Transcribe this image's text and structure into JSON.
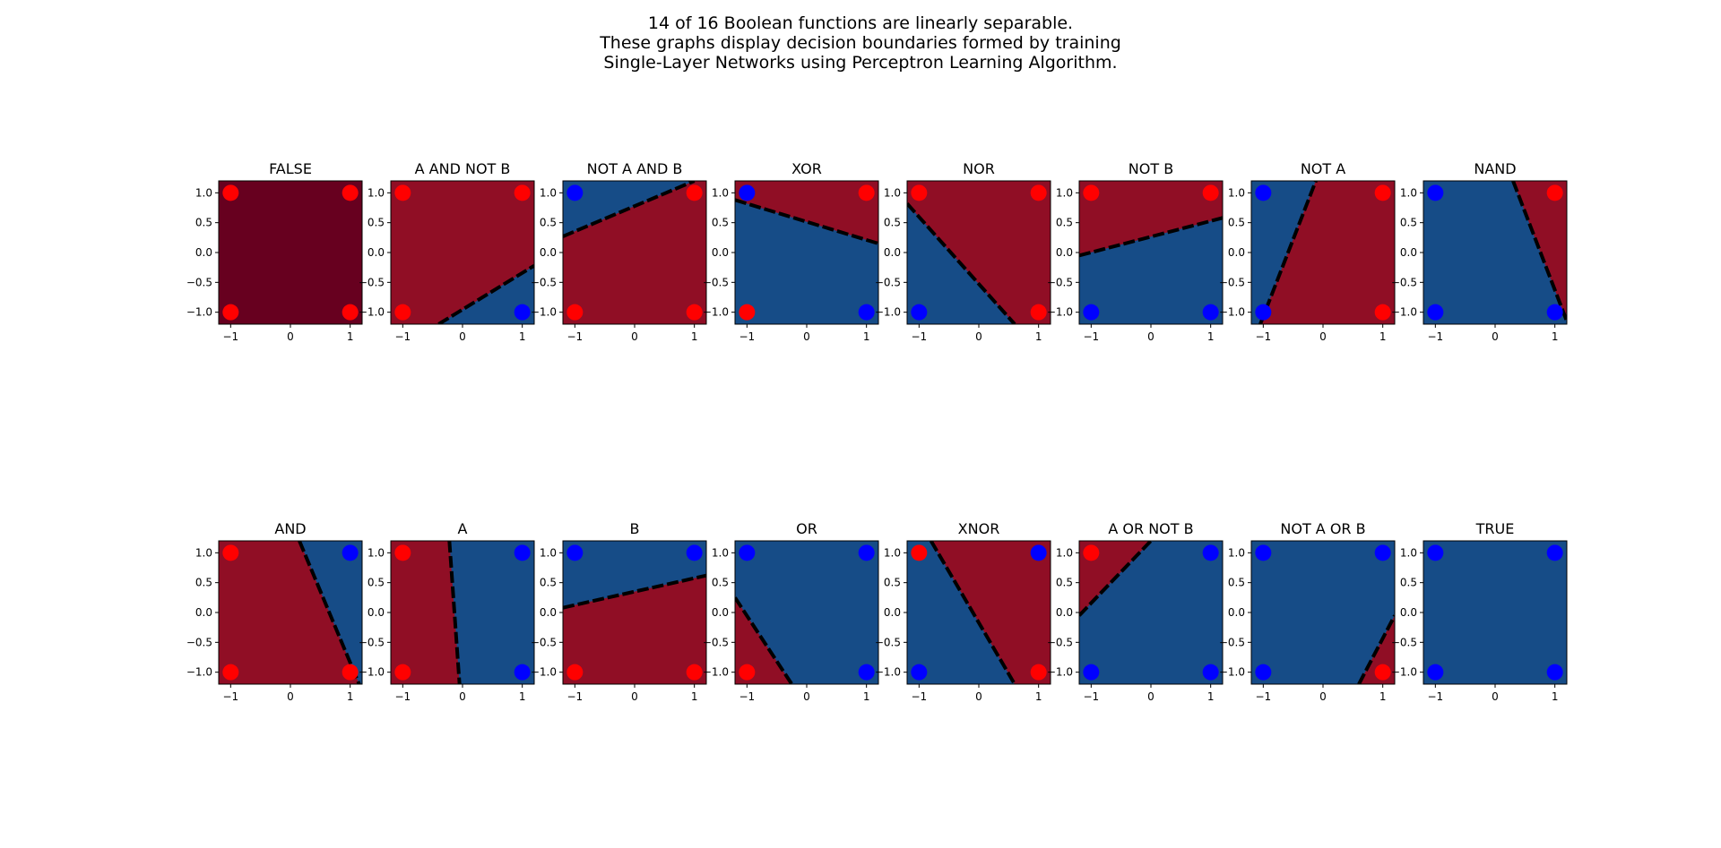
{
  "title_lines": [
    "14 of 16 Boolean functions are linearly separable.",
    "These graphs display decision boundaries formed by training",
    "Single-Layer Networks using Perceptron Learning Algorithm."
  ],
  "colors": {
    "positive_region": "#164c87",
    "negative_region": "#900e25",
    "false_region": "#67001f",
    "positive_point": "#0000ff",
    "negative_point": "#ff0000",
    "boundary": "#000000"
  },
  "chart_data": [
    {
      "type": "scatter",
      "title": "FALSE",
      "xlim": [
        -1.2,
        1.2
      ],
      "ylim": [
        -1.2,
        1.2
      ],
      "xticks": [
        "−1",
        "0",
        "1"
      ],
      "yticks": [
        "1.0",
        "0.5",
        "0.0",
        "−0.5",
        "−1.0"
      ],
      "x": [
        -1,
        1,
        -1,
        1
      ],
      "y": [
        -1,
        -1,
        1,
        1
      ],
      "labels": [
        0,
        0,
        0,
        0
      ],
      "fill": "false",
      "boundary": null
    },
    {
      "type": "scatter",
      "title": "A AND NOT B",
      "xlim": [
        -1.2,
        1.2
      ],
      "ylim": [
        -1.2,
        1.2
      ],
      "xticks": [
        "−1",
        "0",
        "1"
      ],
      "yticks": [
        "1.0",
        "0.5",
        "0.0",
        "−0.5",
        "−1.0"
      ],
      "x": [
        -1,
        1,
        -1,
        1
      ],
      "y": [
        -1,
        -1,
        1,
        1
      ],
      "labels": [
        0,
        1,
        0,
        0
      ],
      "fill": "split",
      "boundary": [
        [
          -0.4,
          -1.2
        ],
        [
          1.2,
          -0.22
        ]
      ]
    },
    {
      "type": "scatter",
      "title": "NOT A AND B",
      "xlim": [
        -1.2,
        1.2
      ],
      "ylim": [
        -1.2,
        1.2
      ],
      "xticks": [
        "−1",
        "0",
        "1"
      ],
      "yticks": [
        "1.0",
        "0.5",
        "0.0",
        "−0.5",
        "−1.0"
      ],
      "x": [
        -1,
        1,
        -1,
        1
      ],
      "y": [
        -1,
        -1,
        1,
        1
      ],
      "labels": [
        0,
        0,
        1,
        0
      ],
      "fill": "split",
      "boundary": [
        [
          -1.2,
          0.27
        ],
        [
          1.0,
          1.2
        ]
      ]
    },
    {
      "type": "scatter",
      "title": "XOR",
      "xlim": [
        -1.2,
        1.2
      ],
      "ylim": [
        -1.2,
        1.2
      ],
      "xticks": [
        "−1",
        "0",
        "1"
      ],
      "yticks": [
        "1.0",
        "0.5",
        "0.0",
        "−0.5",
        "−1.0"
      ],
      "x": [
        -1,
        1,
        -1,
        1
      ],
      "y": [
        -1,
        -1,
        1,
        1
      ],
      "labels": [
        0,
        1,
        1,
        0
      ],
      "fill": "split",
      "boundary": [
        [
          -1.2,
          0.88
        ],
        [
          1.2,
          0.15
        ]
      ]
    },
    {
      "type": "scatter",
      "title": "NOR",
      "xlim": [
        -1.2,
        1.2
      ],
      "ylim": [
        -1.2,
        1.2
      ],
      "xticks": [
        "−1",
        "0",
        "1"
      ],
      "yticks": [
        "1.0",
        "0.5",
        "0.0",
        "−0.5",
        "−1.0"
      ],
      "x": [
        -1,
        1,
        -1,
        1
      ],
      "y": [
        -1,
        -1,
        1,
        1
      ],
      "labels": [
        1,
        0,
        0,
        0
      ],
      "fill": "split",
      "boundary": [
        [
          -1.2,
          0.82
        ],
        [
          0.6,
          -1.2
        ]
      ]
    },
    {
      "type": "scatter",
      "title": "NOT B",
      "xlim": [
        -1.2,
        1.2
      ],
      "ylim": [
        -1.2,
        1.2
      ],
      "xticks": [
        "−1",
        "0",
        "1"
      ],
      "yticks": [
        "1.0",
        "0.5",
        "0.0",
        "−0.5",
        "−1.0"
      ],
      "x": [
        -1,
        1,
        -1,
        1
      ],
      "y": [
        -1,
        -1,
        1,
        1
      ],
      "labels": [
        1,
        1,
        0,
        0
      ],
      "fill": "split",
      "boundary": [
        [
          -1.2,
          -0.05
        ],
        [
          1.2,
          0.58
        ]
      ]
    },
    {
      "type": "scatter",
      "title": "NOT A",
      "xlim": [
        -1.2,
        1.2
      ],
      "ylim": [
        -1.2,
        1.2
      ],
      "xticks": [
        "−1",
        "0",
        "1"
      ],
      "yticks": [
        "1.0",
        "0.5",
        "0.0",
        "−0.5",
        "−1.0"
      ],
      "x": [
        -1,
        1,
        -1,
        1
      ],
      "y": [
        -1,
        -1,
        1,
        1
      ],
      "labels": [
        1,
        0,
        1,
        0
      ],
      "fill": "split",
      "boundary": [
        [
          -1.05,
          -1.2
        ],
        [
          -0.12,
          1.2
        ]
      ]
    },
    {
      "type": "scatter",
      "title": "NAND",
      "xlim": [
        -1.2,
        1.2
      ],
      "ylim": [
        -1.2,
        1.2
      ],
      "xticks": [
        "−1",
        "0",
        "1"
      ],
      "yticks": [
        "1.0",
        "0.5",
        "0.0",
        "−0.5",
        "−1.0"
      ],
      "x": [
        -1,
        1,
        -1,
        1
      ],
      "y": [
        -1,
        -1,
        1,
        1
      ],
      "labels": [
        1,
        1,
        1,
        0
      ],
      "fill": "split",
      "boundary": [
        [
          0.3,
          1.2
        ],
        [
          1.2,
          -1.15
        ]
      ]
    },
    {
      "type": "scatter",
      "title": "AND",
      "xlim": [
        -1.2,
        1.2
      ],
      "ylim": [
        -1.2,
        1.2
      ],
      "xticks": [
        "−1",
        "0",
        "1"
      ],
      "yticks": [
        "1.0",
        "0.5",
        "0.0",
        "−0.5",
        "−1.0"
      ],
      "x": [
        -1,
        1,
        -1,
        1
      ],
      "y": [
        -1,
        -1,
        1,
        1
      ],
      "labels": [
        0,
        0,
        0,
        1
      ],
      "fill": "split",
      "boundary": [
        [
          0.15,
          1.2
        ],
        [
          1.15,
          -1.2
        ]
      ]
    },
    {
      "type": "scatter",
      "title": "A",
      "xlim": [
        -1.2,
        1.2
      ],
      "ylim": [
        -1.2,
        1.2
      ],
      "xticks": [
        "−1",
        "0",
        "1"
      ],
      "yticks": [
        "1.0",
        "0.5",
        "0.0",
        "−0.5",
        "−1.0"
      ],
      "x": [
        -1,
        1,
        -1,
        1
      ],
      "y": [
        -1,
        -1,
        1,
        1
      ],
      "labels": [
        0,
        1,
        0,
        1
      ],
      "fill": "split",
      "boundary": [
        [
          -0.22,
          1.2
        ],
        [
          -0.05,
          -1.2
        ]
      ]
    },
    {
      "type": "scatter",
      "title": "B",
      "xlim": [
        -1.2,
        1.2
      ],
      "ylim": [
        -1.2,
        1.2
      ],
      "xticks": [
        "−1",
        "0",
        "1"
      ],
      "yticks": [
        "1.0",
        "0.5",
        "0.0",
        "−0.5",
        "−1.0"
      ],
      "x": [
        -1,
        1,
        -1,
        1
      ],
      "y": [
        -1,
        -1,
        1,
        1
      ],
      "labels": [
        0,
        0,
        1,
        1
      ],
      "fill": "split",
      "boundary": [
        [
          -1.2,
          0.08
        ],
        [
          1.2,
          0.62
        ]
      ]
    },
    {
      "type": "scatter",
      "title": "OR",
      "xlim": [
        -1.2,
        1.2
      ],
      "ylim": [
        -1.2,
        1.2
      ],
      "xticks": [
        "−1",
        "0",
        "1"
      ],
      "yticks": [
        "1.0",
        "0.5",
        "0.0",
        "−0.5",
        "−1.0"
      ],
      "x": [
        -1,
        1,
        -1,
        1
      ],
      "y": [
        -1,
        -1,
        1,
        1
      ],
      "labels": [
        0,
        1,
        1,
        1
      ],
      "fill": "split",
      "boundary": [
        [
          -1.2,
          0.25
        ],
        [
          -0.25,
          -1.2
        ]
      ]
    },
    {
      "type": "scatter",
      "title": "XNOR",
      "xlim": [
        -1.2,
        1.2
      ],
      "ylim": [
        -1.2,
        1.2
      ],
      "xticks": [
        "−1",
        "0",
        "1"
      ],
      "yticks": [
        "1.0",
        "0.5",
        "0.0",
        "−0.5",
        "−1.0"
      ],
      "x": [
        -1,
        1,
        -1,
        1
      ],
      "y": [
        -1,
        -1,
        1,
        1
      ],
      "labels": [
        1,
        0,
        0,
        1
      ],
      "fill": "split",
      "boundary": [
        [
          -0.8,
          1.2
        ],
        [
          0.6,
          -1.2
        ]
      ]
    },
    {
      "type": "scatter",
      "title": "A OR NOT B",
      "xlim": [
        -1.2,
        1.2
      ],
      "ylim": [
        -1.2,
        1.2
      ],
      "xticks": [
        "−1",
        "0",
        "1"
      ],
      "yticks": [
        "1.0",
        "0.5",
        "0.0",
        "−0.5",
        "−1.0"
      ],
      "x": [
        -1,
        1,
        -1,
        1
      ],
      "y": [
        -1,
        -1,
        1,
        1
      ],
      "labels": [
        1,
        1,
        0,
        1
      ],
      "fill": "split",
      "boundary": [
        [
          -1.2,
          -0.05
        ],
        [
          0.0,
          1.2
        ]
      ]
    },
    {
      "type": "scatter",
      "title": "NOT A OR B",
      "xlim": [
        -1.2,
        1.2
      ],
      "ylim": [
        -1.2,
        1.2
      ],
      "xticks": [
        "−1",
        "0",
        "1"
      ],
      "yticks": [
        "1.0",
        "0.5",
        "0.0",
        "−0.5",
        "−1.0"
      ],
      "x": [
        -1,
        1,
        -1,
        1
      ],
      "y": [
        -1,
        -1,
        1,
        1
      ],
      "labels": [
        1,
        0,
        1,
        1
      ],
      "fill": "split",
      "boundary": [
        [
          0.6,
          -1.2
        ],
        [
          1.2,
          -0.05
        ]
      ]
    },
    {
      "type": "scatter",
      "title": "TRUE",
      "xlim": [
        -1.2,
        1.2
      ],
      "ylim": [
        -1.2,
        1.2
      ],
      "xticks": [
        "−1",
        "0",
        "1"
      ],
      "yticks": [
        "1.0",
        "0.5",
        "0.0",
        "−0.5",
        "−1.0"
      ],
      "x": [
        -1,
        1,
        -1,
        1
      ],
      "y": [
        -1,
        -1,
        1,
        1
      ],
      "labels": [
        1,
        1,
        1,
        1
      ],
      "fill": "true",
      "boundary": null
    }
  ]
}
